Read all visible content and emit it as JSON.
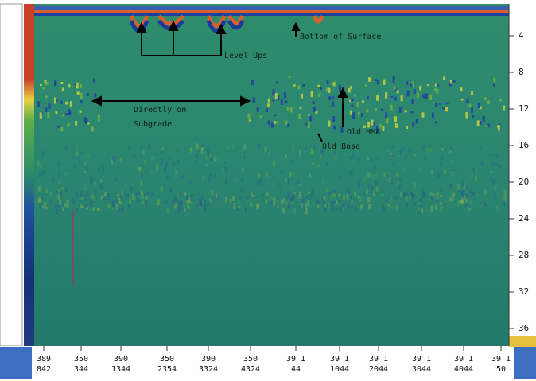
{
  "annotations": {
    "bottom_of_surface": "Bottom of Surface",
    "level_ups": "Level Ups",
    "directly_on_subgrade": [
      "Directly on",
      "Subgrade"
    ],
    "old_hma": "Old HMA",
    "old_base": "Old Base"
  },
  "depth_labels": [
    "4",
    "8",
    "12",
    "16",
    "20",
    "24",
    "28",
    "32",
    "36"
  ],
  "distance_labels": [
    [
      "389",
      "842"
    ],
    [
      "350",
      "344"
    ],
    [
      "390",
      "1344"
    ],
    [
      "350",
      "2354"
    ],
    [
      "390",
      "3324"
    ],
    [
      "350",
      "4324"
    ],
    [
      "39 1",
      "44"
    ],
    [
      "39 1",
      "1044"
    ],
    [
      "39 1",
      "2044"
    ],
    [
      "39 1",
      "3044"
    ],
    [
      "39 1",
      "4044"
    ],
    [
      "39 1",
      "50"
    ]
  ]
}
